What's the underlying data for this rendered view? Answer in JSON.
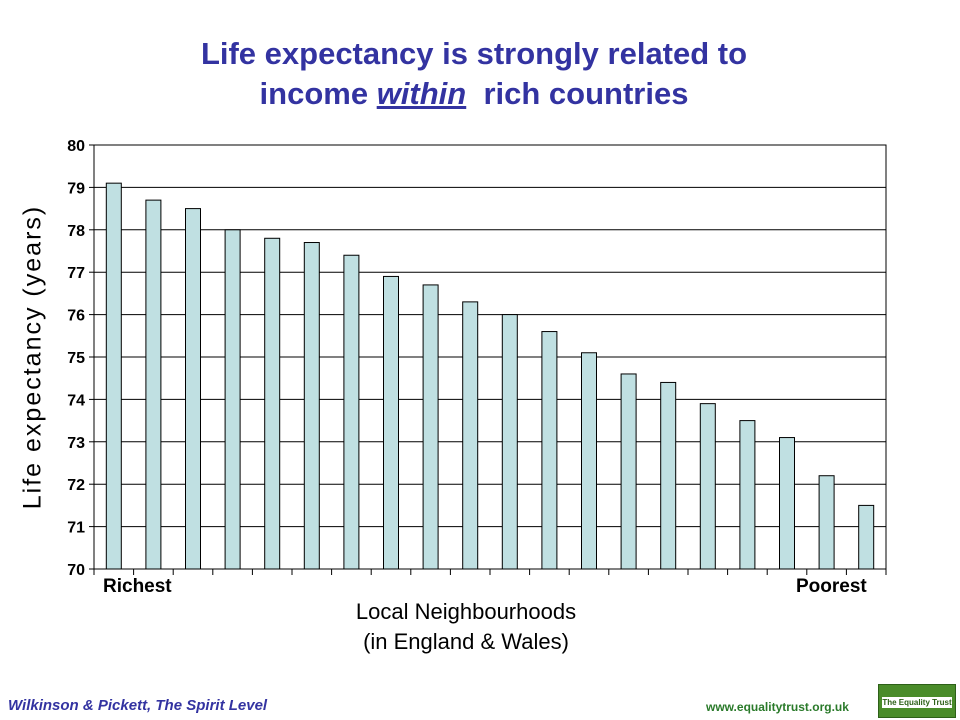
{
  "title": {
    "line1": "Life expectancy is strongly related to",
    "line2_prefix": "income ",
    "line2_emphasis": "within",
    "line2_suffix": "  rich countries"
  },
  "footer": {
    "citation": "Wilkinson & Pickett, The Spirit Level",
    "url": "www.equalitytrust.org.uk",
    "logo_text": "The Equality Trust"
  },
  "chart_data": {
    "type": "bar",
    "ylabel": "Life expectancy (years)",
    "xlabel_line1": "Local Neighbourhoods",
    "xlabel_line2": "(in England & Wales)",
    "x_start_label": "Richest",
    "x_end_label": "Poorest",
    "ylim": [
      70,
      80
    ],
    "yticks": [
      "70",
      "71",
      "72",
      "73",
      "74",
      "75",
      "76",
      "77",
      "78",
      "79",
      "80"
    ],
    "grid": true,
    "bar_color": "#c0e0e2",
    "values": [
      79.1,
      78.7,
      78.5,
      78.0,
      77.8,
      77.7,
      77.4,
      76.9,
      76.7,
      76.3,
      76.0,
      75.6,
      75.1,
      74.6,
      74.4,
      73.9,
      73.5,
      73.1,
      72.2,
      71.5
    ]
  }
}
